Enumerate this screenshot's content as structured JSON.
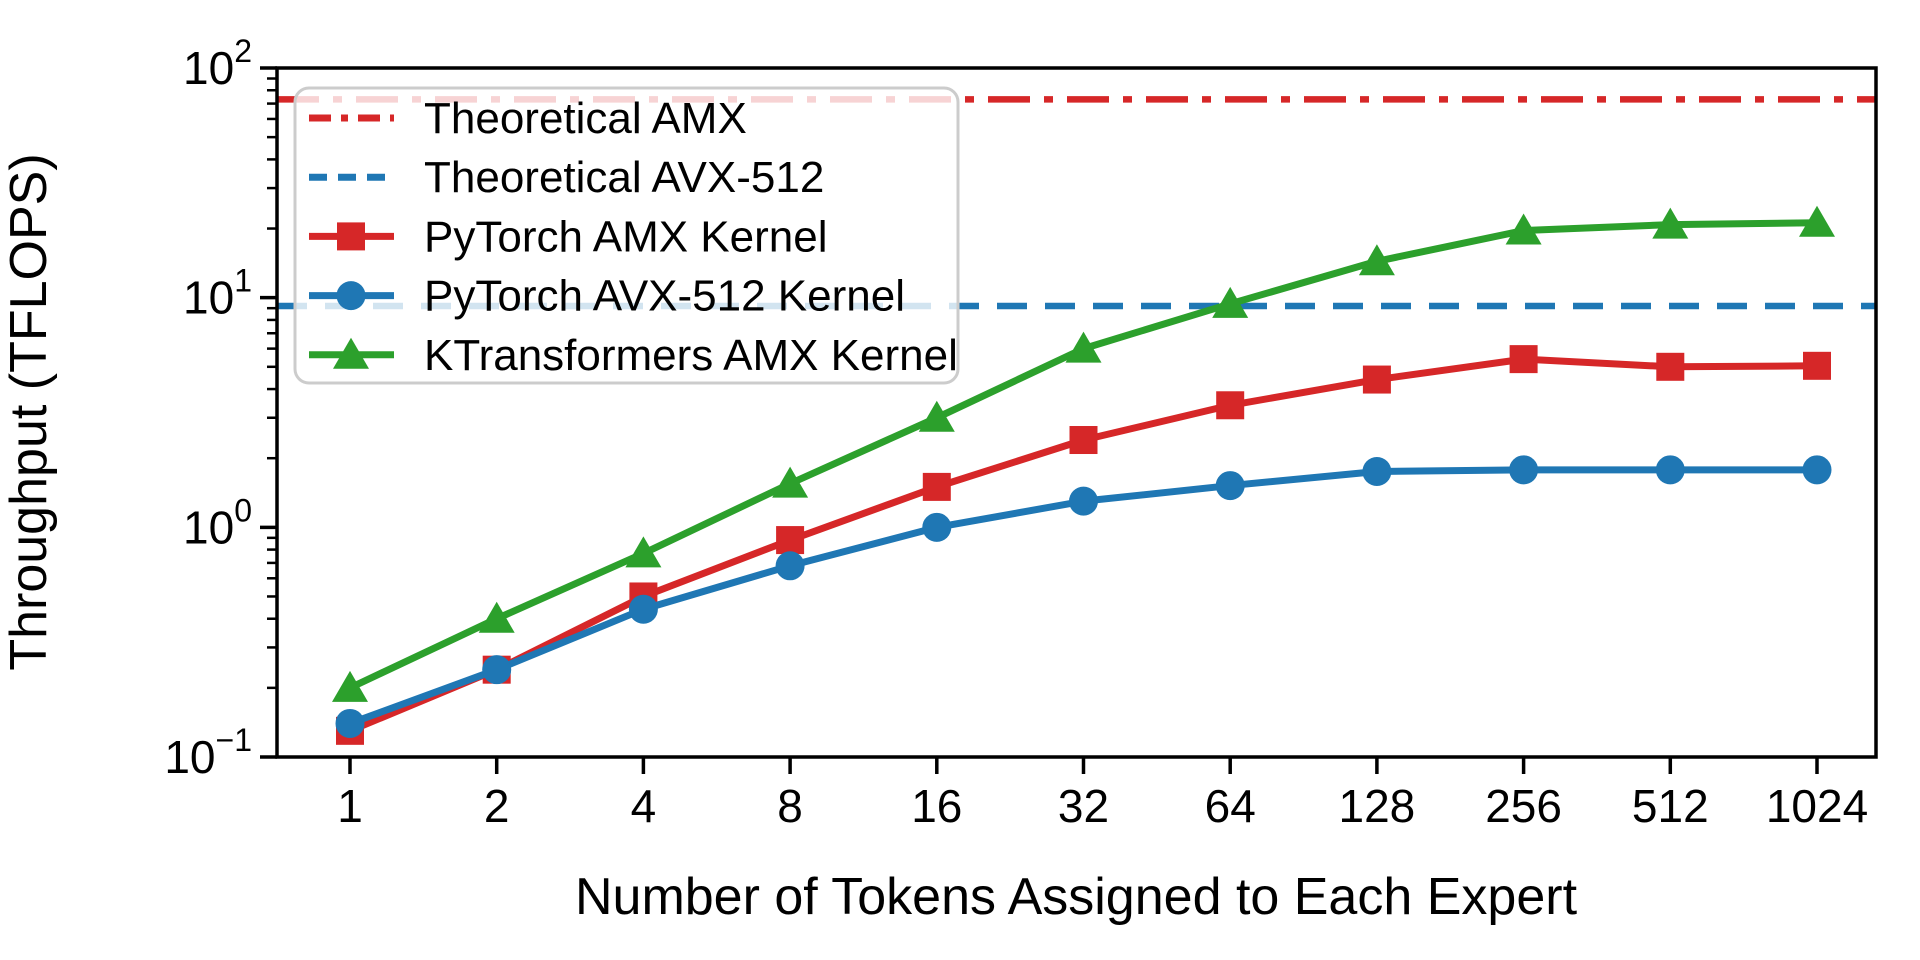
{
  "chart_data": {
    "type": "line",
    "title": "",
    "xlabel": "Number of Tokens Assigned to Each Expert",
    "ylabel": "Throughput (TFLOPS)",
    "x_scale": "log2",
    "y_scale": "log10",
    "ylim": [
      0.1,
      100
    ],
    "y_tick_exponents": [
      -1,
      0,
      1,
      2
    ],
    "grid": false,
    "legend_position": "upper left",
    "categories": [
      1,
      2,
      4,
      8,
      16,
      32,
      64,
      128,
      256,
      512,
      1024
    ],
    "xtick_labels": [
      "1",
      "2",
      "4",
      "8",
      "16",
      "32",
      "64",
      "128",
      "256",
      "512",
      "1024"
    ],
    "reference_lines": [
      {
        "label": "Theoretical AMX",
        "value": 73,
        "color": "#d62728",
        "linestyle": "dashdot"
      },
      {
        "label": "Theoretical AVX-512",
        "value": 9.2,
        "color": "#1f77b4",
        "linestyle": "dashed"
      }
    ],
    "series": [
      {
        "label": "PyTorch AMX Kernel",
        "color": "#d62728",
        "marker": "square",
        "values": [
          0.13,
          0.24,
          0.5,
          0.88,
          1.5,
          2.4,
          3.4,
          4.4,
          5.4,
          5.0,
          5.05
        ]
      },
      {
        "label": "PyTorch AVX-512 Kernel",
        "color": "#1f77b4",
        "marker": "circle",
        "values": [
          0.14,
          0.24,
          0.44,
          0.68,
          1.0,
          1.3,
          1.52,
          1.75,
          1.78,
          1.78,
          1.78
        ]
      },
      {
        "label": "KTransformers AMX Kernel",
        "color": "#2ca02c",
        "marker": "triangle",
        "values": [
          0.2,
          0.4,
          0.77,
          1.55,
          3.0,
          6.0,
          9.4,
          14.4,
          19.6,
          20.8,
          21.2
        ]
      }
    ]
  }
}
